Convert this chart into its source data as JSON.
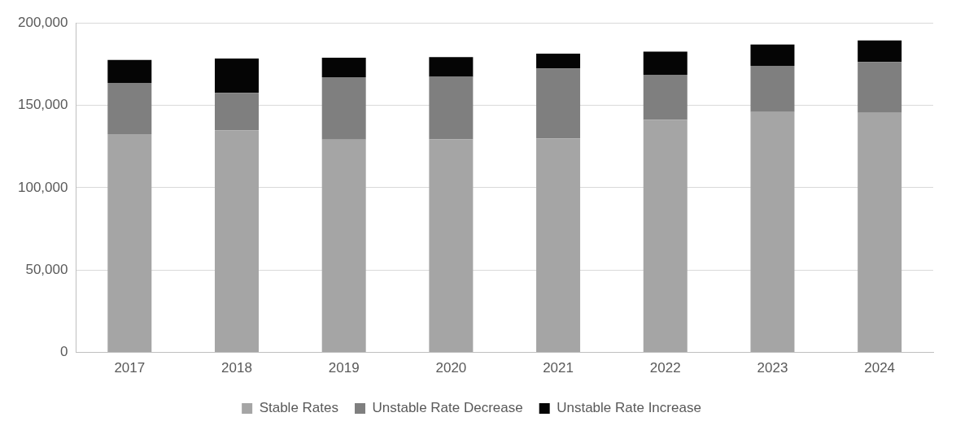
{
  "chart_data": {
    "type": "bar",
    "stacked": true,
    "categories": [
      "2017",
      "2018",
      "2019",
      "2020",
      "2021",
      "2022",
      "2023",
      "2024"
    ],
    "series": [
      {
        "name": "Stable Rates",
        "color": "#a5a5a5",
        "values": [
          132500,
          134900,
          129200,
          129400,
          129900,
          141100,
          146000,
          145500
        ]
      },
      {
        "name": "Unstable Rate Decrease",
        "color": "#7f7f7f",
        "values": [
          31100,
          22700,
          37900,
          37900,
          42400,
          27400,
          27900,
          30800
        ]
      },
      {
        "name": "Unstable Rate Increase",
        "color": "#050505",
        "values": [
          13900,
          20800,
          11800,
          12000,
          9000,
          14100,
          13000,
          13100
        ]
      }
    ],
    "ylim": [
      0,
      200000
    ],
    "yticks": [
      {
        "value": 0,
        "label": "0"
      },
      {
        "value": 50000,
        "label": "50,000"
      },
      {
        "value": 100000,
        "label": "100,000"
      },
      {
        "value": 150000,
        "label": "150,000"
      },
      {
        "value": 200000,
        "label": "200,000"
      }
    ],
    "grid": "y",
    "legend": "bottom"
  }
}
